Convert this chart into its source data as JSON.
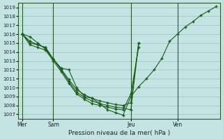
{
  "xlabel": "Pression niveau de la mer( hPa )",
  "bg_color": "#c4e4e4",
  "grid_color": "#9bbfbf",
  "line_color": "#1a5c1a",
  "ylim": [
    1006.5,
    1019.5
  ],
  "yticks": [
    1007,
    1008,
    1009,
    1010,
    1011,
    1012,
    1013,
    1014,
    1015,
    1016,
    1017,
    1018,
    1019
  ],
  "xtick_labels": [
    "Mer",
    "Sam",
    "Jeu",
    "Ven"
  ],
  "xtick_positions": [
    0,
    4,
    14,
    20
  ],
  "xlim": [
    -0.5,
    25.5
  ],
  "n_points_line1": 26,
  "n_points_others": 16,
  "vline_positions": [
    0,
    4,
    14,
    20
  ],
  "line1": [
    1016.0,
    1015.7,
    1015.0,
    1014.3,
    1013.2,
    1012.2,
    1012.0,
    1010.0,
    1009.0,
    1008.8,
    1008.2,
    1007.5,
    1007.2,
    1006.9,
    1009.0,
    1010.1,
    1011.0,
    1012.0,
    1013.3,
    1015.2,
    1016.0,
    1016.8,
    1017.4,
    1018.1,
    1018.6,
    1019.1
  ],
  "line2": [
    1016.0,
    1015.2,
    1014.8,
    1014.5,
    1013.2,
    1012.1,
    1010.9,
    1009.8,
    1009.2,
    1008.8,
    1008.5,
    1008.3,
    1008.1,
    1008.0,
    1008.3,
    1015.0
  ],
  "line3": [
    1016.0,
    1015.0,
    1014.8,
    1014.5,
    1013.2,
    1012.0,
    1010.7,
    1009.5,
    1008.9,
    1008.5,
    1008.2,
    1008.0,
    1007.8,
    1007.7,
    1007.5,
    1015.0
  ],
  "line4": [
    1016.0,
    1014.8,
    1014.5,
    1014.2,
    1013.0,
    1011.8,
    1010.5,
    1009.3,
    1008.7,
    1008.2,
    1008.0,
    1007.8,
    1007.6,
    1007.5,
    1009.3,
    1014.5
  ]
}
